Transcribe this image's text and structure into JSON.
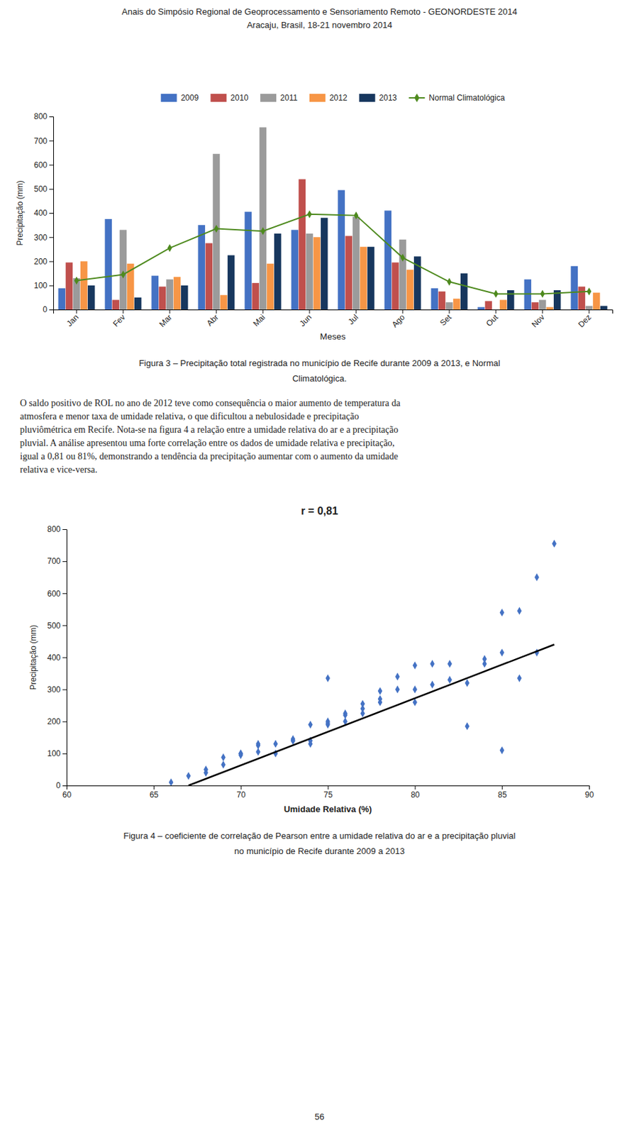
{
  "header": [
    "Anais do Simpósio Regional de Geoprocessamento e Sensoriamento Remoto - GEONORDESTE 2014",
    "Aracaju, Brasil, 18-21 novembro 2014"
  ],
  "body_text": [
    "O saldo positivo de ROL no ano de 2012 teve como consequência o maior aumento de temperatura da",
    "atmosfera e menor taxa de umidade relativa, o que dificultou a nebulosidade e precipitação",
    "pluviômétrica em Recife. Nota-se na figura 4 a relação entre a umidade relativa do ar e a precipitação",
    "pluvial. A análise apresentou uma forte correlação entre os dados de umidade relativa e precipitação,",
    "igual a 0,81 ou 81%, demonstrando a tendência da precipitação aumentar com o aumento da umidade",
    "relativa e vice-versa."
  ],
  "page_number": "56",
  "chart_data": [
    {
      "type": "bar",
      "categories": [
        "Jan",
        "Fev",
        "Mar",
        "Abr",
        "Mai",
        "Jun",
        "Jul",
        "Ago",
        "Set",
        "Out",
        "Nov",
        "Dez"
      ],
      "series": [
        {
          "name": "2009",
          "color": "#4472C4",
          "values": [
            88,
            375,
            140,
            350,
            405,
            330,
            495,
            410,
            88,
            10,
            125,
            180
          ]
        },
        {
          "name": "2010",
          "color": "#C0504D",
          "values": [
            195,
            40,
            95,
            275,
            110,
            540,
            305,
            195,
            75,
            35,
            30,
            95
          ]
        },
        {
          "name": "2011",
          "color": "#9B9B9B",
          "values": [
            130,
            330,
            125,
            645,
            755,
            315,
            385,
            290,
            30,
            0,
            40,
            15
          ]
        },
        {
          "name": "2012",
          "color": "#F79646",
          "values": [
            200,
            190,
            135,
            60,
            190,
            300,
            260,
            165,
            45,
            40,
            10,
            70
          ]
        },
        {
          "name": "2013",
          "color": "#17375E",
          "values": [
            100,
            50,
            100,
            225,
            315,
            380,
            260,
            220,
            150,
            80,
            80,
            15
          ]
        },
        {
          "name": "Normal Climatológica",
          "type": "line",
          "marker": "diamond",
          "color": "#4E8A1E",
          "values": [
            120,
            145,
            255,
            335,
            325,
            395,
            390,
            215,
            115,
            65,
            65,
            75
          ]
        }
      ],
      "x_label": "Meses",
      "y_label": "Precipitação (mm)",
      "ylim": [
        0,
        800
      ],
      "yticks": [
        0,
        100,
        200,
        300,
        400,
        500,
        600,
        700,
        800
      ],
      "grid": false,
      "legend": "top",
      "caption": [
        "Figura 3 – Precipitação total registrada no município de Recife durante 2009 a 2013, e Normal",
        "Climatológica."
      ]
    },
    {
      "type": "scatter",
      "title": "r = 0,81",
      "series": [
        {
          "type": "scatter",
          "marker": "diamond",
          "color": "#4472C4",
          "x": [
            66,
            67,
            68,
            68,
            69,
            69,
            70,
            70,
            70,
            71,
            71,
            71,
            72,
            72,
            73,
            73,
            73,
            74,
            74,
            74,
            75,
            75,
            75,
            75,
            76,
            76,
            76,
            77,
            77,
            77,
            78,
            78,
            78,
            79,
            79,
            80,
            80,
            80,
            81,
            81,
            82,
            82,
            83,
            83,
            84,
            84,
            85,
            85,
            85,
            86,
            86,
            87,
            87,
            88
          ],
          "values": [
            10,
            30,
            40,
            50,
            65,
            88,
            95,
            100,
            100,
            105,
            125,
            130,
            100,
            130,
            140,
            140,
            145,
            130,
            140,
            190,
            190,
            195,
            200,
            335,
            200,
            220,
            225,
            225,
            240,
            255,
            260,
            270,
            295,
            300,
            340,
            260,
            300,
            375,
            315,
            380,
            330,
            380,
            185,
            320,
            380,
            395,
            110,
            415,
            540,
            335,
            545,
            415,
            650,
            755
          ]
        },
        {
          "type": "line",
          "color": "#000000",
          "x": [
            67,
            88
          ],
          "values": [
            0,
            440
          ]
        }
      ],
      "x_label": "Umidade Relativa (%)",
      "y_label": "Precipitação (mm)",
      "xlim": [
        60,
        90
      ],
      "ylim": [
        0,
        800
      ],
      "xticks": [
        60,
        65,
        70,
        75,
        80,
        85,
        90
      ],
      "yticks": [
        0,
        100,
        200,
        300,
        400,
        500,
        600,
        700,
        800
      ],
      "grid": false,
      "caption": [
        "Figura 4 – coeficiente de correlação de Pearson entre a umidade relativa do ar e a precipitação pluvial",
        "no município de Recife durante 2009 a 2013"
      ]
    }
  ]
}
